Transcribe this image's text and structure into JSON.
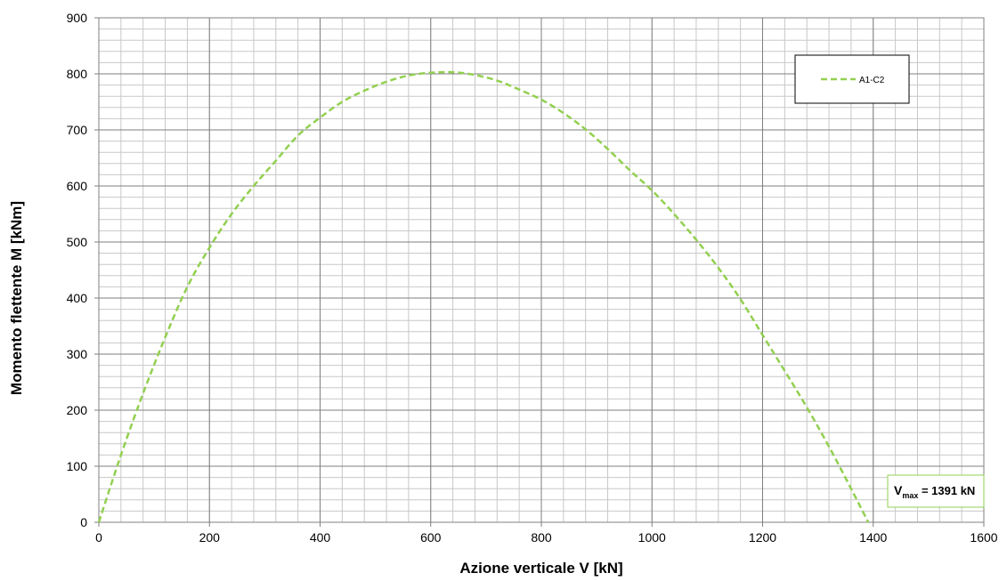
{
  "chart_data": {
    "type": "line",
    "title": "",
    "xlabel": "Azione verticale V [kN]",
    "ylabel": "Momento flettente M [kNm]",
    "xlim": [
      0,
      1600
    ],
    "ylim": [
      0,
      900
    ],
    "x_ticks": [
      0,
      200,
      400,
      600,
      800,
      1000,
      1200,
      1400,
      1600
    ],
    "y_ticks": [
      0,
      100,
      200,
      300,
      400,
      500,
      600,
      700,
      800,
      900
    ],
    "x_minor_step": 40,
    "y_minor_step": 20,
    "grid": true,
    "legend_position": "top-right",
    "series": [
      {
        "name": "A1-C2",
        "style": "dashed",
        "color": "#92d050",
        "x": [
          0,
          40,
          80,
          120,
          160,
          200,
          240,
          280,
          320,
          360,
          400,
          440,
          480,
          520,
          560,
          600,
          640,
          680,
          720,
          760,
          800,
          840,
          880,
          920,
          960,
          1000,
          1040,
          1080,
          1120,
          1160,
          1200,
          1240,
          1280,
          1320,
          1360,
          1391
        ],
        "y": [
          0,
          120,
          230,
          330,
          420,
          490,
          550,
          600,
          645,
          690,
          722,
          750,
          770,
          786,
          797,
          802,
          803,
          798,
          788,
          772,
          754,
          730,
          701,
          666,
          628,
          592,
          550,
          504,
          454,
          398,
          334,
          270,
          205,
          135,
          60,
          0
        ]
      }
    ],
    "annotation": {
      "main": "V",
      "sub": "max",
      "value": " = 1391  kN",
      "position": "bottom-right",
      "border_color": "#92d050"
    }
  }
}
